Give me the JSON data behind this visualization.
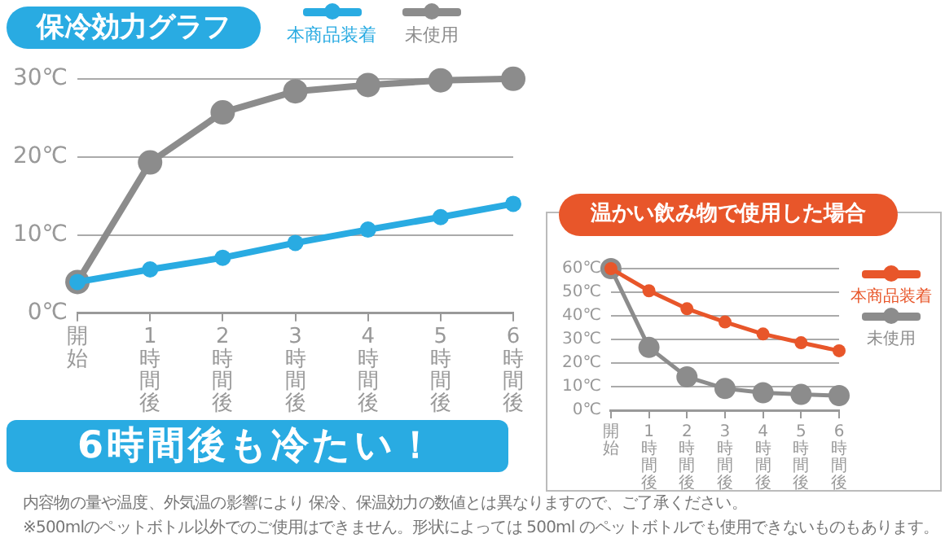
{
  "chart_data": [
    {
      "type": "line",
      "title": "保冷効力グラフ",
      "categories": [
        "開始",
        "1時間後",
        "2時間後",
        "3時間後",
        "4時間後",
        "5時間後",
        "6時間後"
      ],
      "series": [
        {
          "name": "本商品装着",
          "color": "#29abe2",
          "values": [
            4,
            5.6,
            7.1,
            9,
            10.7,
            12.3,
            14
          ]
        },
        {
          "name": "未使用",
          "color": "#8c8c8c",
          "values": [
            4,
            19.3,
            25.7,
            28.4,
            29.2,
            29.8,
            30
          ]
        }
      ],
      "ylim": [
        0,
        30
      ],
      "yticks": [
        {
          "value": 0,
          "label": "0℃"
        },
        {
          "value": 10,
          "label": "10℃"
        },
        {
          "value": 20,
          "label": "20℃"
        },
        {
          "value": 30,
          "label": "30℃"
        }
      ],
      "grid": "y",
      "legend": "top",
      "marker": "circle",
      "annotations": [
        "6時間後も冷たい！",
        "内容物の量や温度、外気温の影響により 保冷、保温効力の数値とは異なりますので、ご了承ください。",
        "※500mlのペットボトル以外でのご使用はできません。形状によっては 500ml のペットボトルでも使用できないものもあります。"
      ]
    },
    {
      "type": "line",
      "title": "温かい飲み物で使用した場合",
      "categories": [
        "開始",
        "1時間後",
        "2時間後",
        "3時間後",
        "4時間後",
        "5時間後",
        "6時間後"
      ],
      "series": [
        {
          "name": "本商品装着",
          "color": "#e8562a",
          "values": [
            60,
            50.6,
            43,
            37.4,
            32.3,
            28.6,
            25.2
          ]
        },
        {
          "name": "未使用",
          "color": "#8c8c8c",
          "values": [
            60,
            26.6,
            14.1,
            9.2,
            7.4,
            6.7,
            6.2
          ]
        }
      ],
      "ylim": [
        0,
        60
      ],
      "yticks": [
        {
          "value": 0,
          "label": "0℃"
        },
        {
          "value": 10,
          "label": "10℃"
        },
        {
          "value": 20,
          "label": "20℃"
        },
        {
          "value": 30,
          "label": "30℃"
        },
        {
          "value": 40,
          "label": "40℃"
        },
        {
          "value": 50,
          "label": "50℃"
        },
        {
          "value": 60,
          "label": "60℃"
        }
      ],
      "grid": "y",
      "legend": "right",
      "marker": "circle"
    }
  ]
}
